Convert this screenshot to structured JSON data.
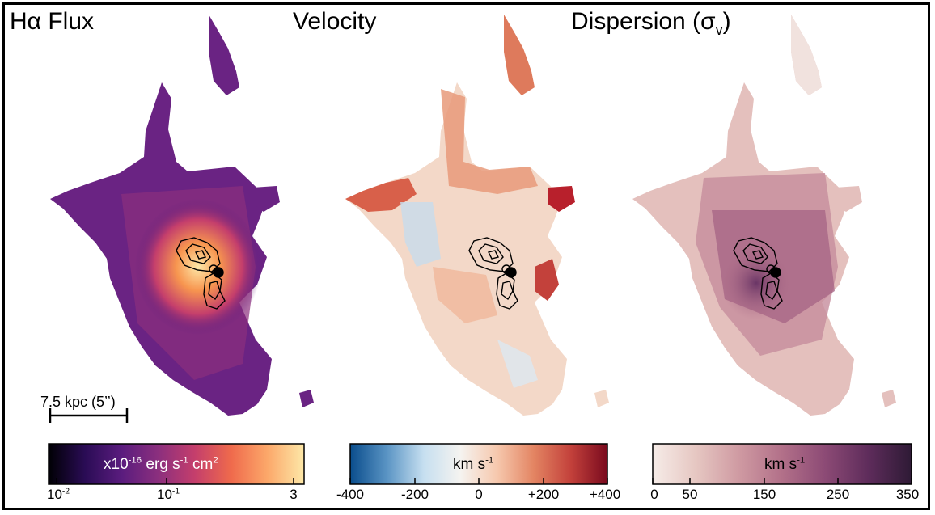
{
  "panels": [
    {
      "title": "Hα Flux",
      "colormap": [
        "#000004",
        "#2a0c55",
        "#5a1c7e",
        "#8b2f7e",
        "#c43e6c",
        "#ef6a4c",
        "#fca86a",
        "#fde8a8"
      ]
    },
    {
      "title": "Velocity",
      "colormap": [
        "#0a4d8c",
        "#5a94c4",
        "#c6dff0",
        "#f5f3f0",
        "#f6c8ad",
        "#e38462",
        "#c3413b",
        "#7a0a1e"
      ]
    },
    {
      "title": "Dispersion (σ",
      "title_sub": "v",
      "title_close": ")",
      "colormap": [
        "#f6ece8",
        "#e6c7c2",
        "#cf9aa2",
        "#b27089",
        "#8c4a75",
        "#5e2c5b",
        "#2e1a35"
      ]
    }
  ],
  "scalebar": {
    "label": "7.5 kpc (5’’)"
  },
  "colorbars": [
    {
      "label_main": "x10",
      "label_exp": "-16",
      "label_rest": " erg s",
      "label_exp2": "-1",
      "label_rest2": " cm",
      "label_exp3": "2",
      "ticks": [
        "10",
        "10",
        "3"
      ],
      "tick_exps": [
        "-2",
        "-1",
        ""
      ]
    },
    {
      "label_main": "km s",
      "label_exp": "-1",
      "ticks": [
        "-400",
        "-200",
        "0",
        "+200",
        "+400"
      ]
    },
    {
      "label_main": "km s",
      "label_exp": "-1",
      "ticks": [
        "0",
        "50",
        "150",
        "250",
        "350"
      ]
    }
  ]
}
